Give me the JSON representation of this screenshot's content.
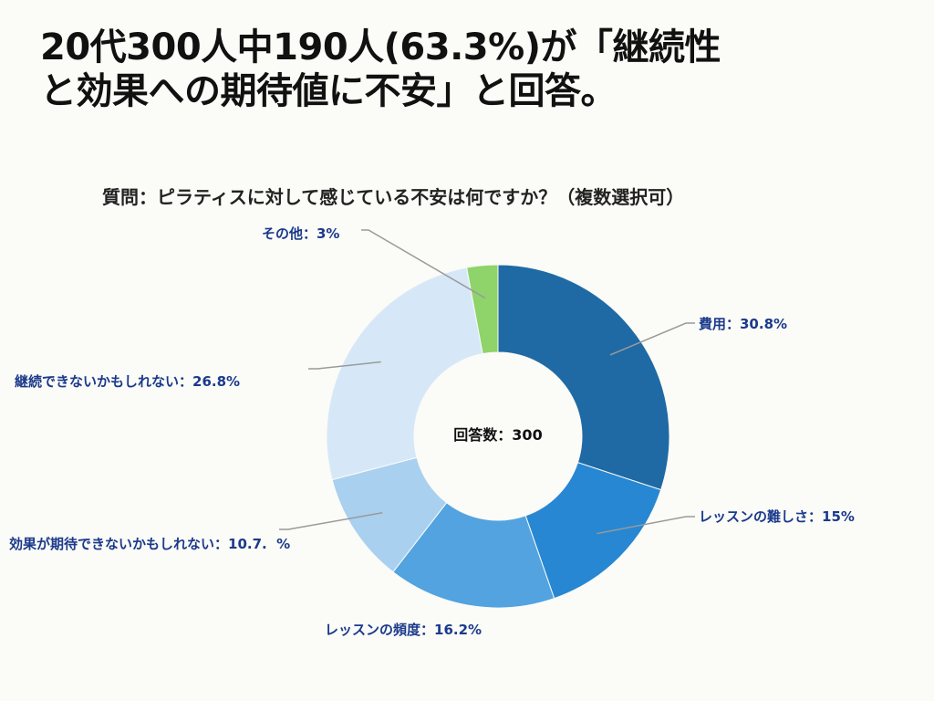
{
  "headline": {
    "line1": "20代300人中190人(63.3%)が「継続性",
    "line2": "と効果への期待値に不安」と回答。"
  },
  "chart_data": {
    "type": "pie",
    "subtype": "donut",
    "title": "質問：ピラティスに対して感じている不安は何ですか？（複数選択可）",
    "center_label": "回答数：300",
    "slices": [
      {
        "label": "費用：30.8%",
        "value": 30.8,
        "color": "#1f6aa5"
      },
      {
        "label": "レッスンの難しさ：15%",
        "value": 15,
        "color": "#2787d2"
      },
      {
        "label": "レッスンの頻度：16.2%",
        "value": 16.2,
        "color": "#52a3e0"
      },
      {
        "label": "効果が期待できないかもしれない：10.7.  %",
        "value": 10.7,
        "color": "#a9d0ef"
      },
      {
        "label": "継続できないかもしれない：26.8%",
        "value": 26.8,
        "color": "#d6e8f8"
      },
      {
        "label": "その他：3%",
        "value": 3,
        "color": "#8fd36b"
      }
    ],
    "start_angle_deg": 0,
    "direction": "clockwise"
  }
}
